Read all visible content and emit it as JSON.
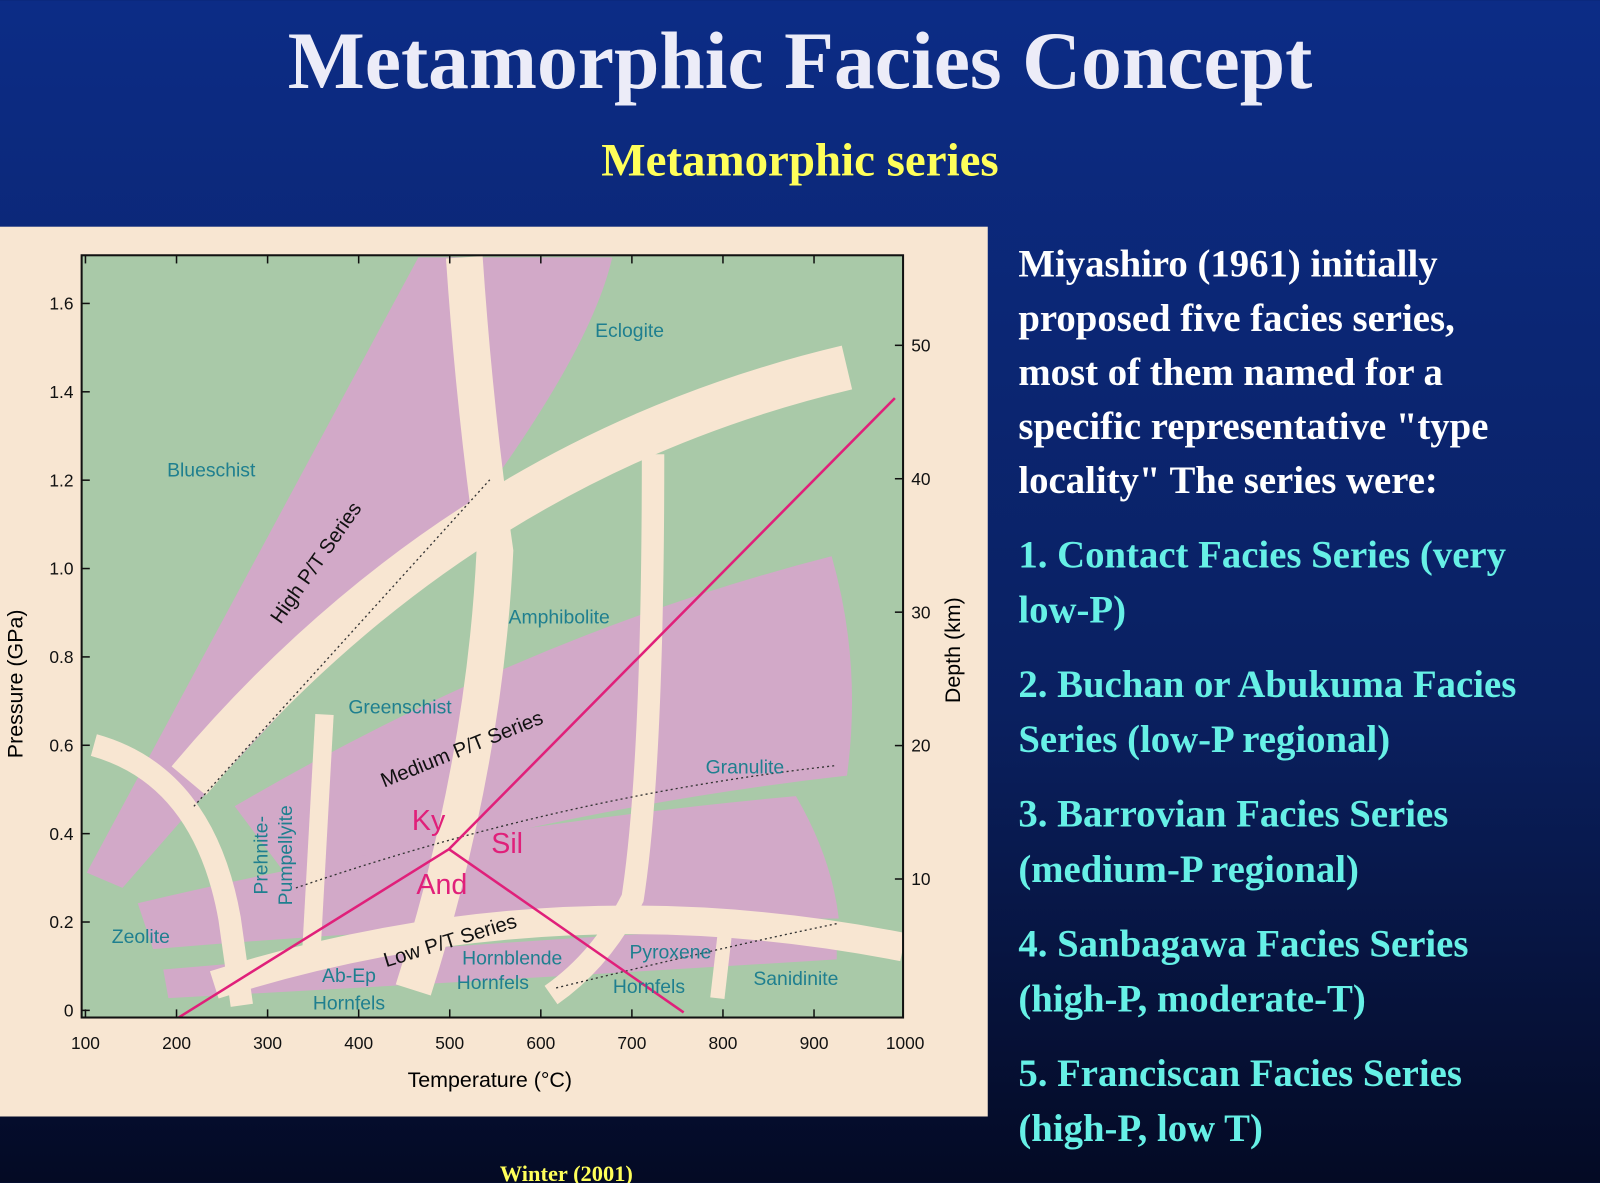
{
  "header": {
    "title": "Metamorphic Facies Concept",
    "subtitle": "Metamorphic series"
  },
  "diagram": {
    "x_axis": {
      "label": "Temperature (°C)",
      "ticks": [
        100,
        200,
        300,
        400,
        500,
        600,
        700,
        800,
        900,
        1000
      ]
    },
    "y_axis": {
      "label": "Pressure (GPa)",
      "ticks": [
        0,
        0.2,
        0.4,
        0.6,
        0.8,
        {
          "value": 1,
          "label": "1.0"
        },
        1.2,
        1.4,
        1.6
      ]
    },
    "y2_axis": {
      "label": "Depth (km)",
      "ticks": [
        10,
        20,
        30,
        40,
        50
      ]
    },
    "facies": [
      [
        "Eclogite"
      ],
      [
        "Blueschist"
      ],
      [
        "Amphibolite"
      ],
      [
        "Greenschist"
      ],
      [
        "Granulite"
      ],
      [
        "Zeolite"
      ],
      [
        "Prehnite-",
        "Pumpellyite"
      ],
      [
        "Ab-Ep",
        "Hornfels"
      ],
      [
        "Hornblende",
        "Hornfels"
      ],
      [
        "Pyroxene",
        "Hornfels"
      ],
      [
        "Sanidinite"
      ]
    ],
    "series_labels": [
      "High P/T Series",
      "Medium P/T Series",
      "Low P/T Series"
    ],
    "minerals": [
      "Ky",
      "Sil",
      "And"
    ]
  },
  "text": {
    "intro": [
      "Miyashiro (1961) initially",
      "proposed five facies series,",
      "most of  them named for a",
      "specific representative \"type",
      "locality\" The series were:"
    ],
    "series": [
      [
        "1. Contact Facies Series (very",
        "low-P)"
      ],
      [
        "2. Buchan or Abukuma Facies",
        "Series (low-P regional)"
      ],
      [
        "3. Barrovian Facies Series",
        "(medium-P regional)"
      ],
      [
        "4. Sanbagawa Facies Series",
        "(high-P, moderate-T)"
      ],
      [
        "5. Franciscan Facies Series",
        "(high-P, low T)"
      ]
    ]
  },
  "credit": "Winter (2001)"
}
